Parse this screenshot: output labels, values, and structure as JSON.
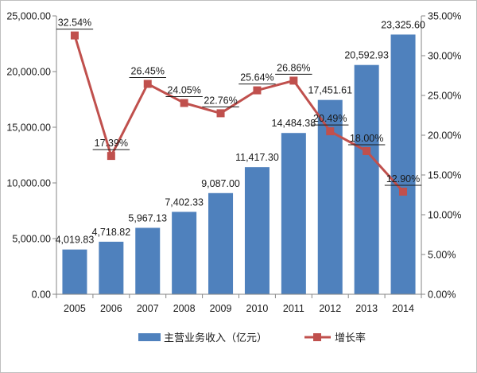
{
  "chart_data": {
    "type": "bar",
    "categories": [
      "2005",
      "2006",
      "2007",
      "2008",
      "2009",
      "2010",
      "2011",
      "2012",
      "2013",
      "2014"
    ],
    "series": [
      {
        "name": "主营业务收入（亿元）",
        "type": "bar",
        "axis": "left",
        "color": "#4f81bd",
        "values": [
          4019.83,
          4718.82,
          5967.13,
          7402.33,
          9087.0,
          11417.3,
          14484.38,
          17451.61,
          20592.93,
          23325.6
        ],
        "labels": [
          "4,019.83",
          "4,718.82",
          "5,967.13",
          "7,402.33",
          "9,087.00",
          "11,417.30",
          "14,484.38",
          "17,451.61",
          "20,592.93",
          "23,325.60"
        ]
      },
      {
        "name": "增长率",
        "type": "line",
        "axis": "right",
        "color": "#c0504d",
        "values": [
          32.54,
          17.39,
          26.45,
          24.05,
          22.76,
          25.64,
          26.86,
          20.49,
          18.0,
          12.9
        ],
        "labels": [
          "32.54%",
          "17.39%",
          "26.45%",
          "24.05%",
          "22.76%",
          "25.64%",
          "26.86%",
          "20.49%",
          "18.00%",
          "12.90%"
        ]
      }
    ],
    "y_left": {
      "range": [
        0,
        25000
      ],
      "ticks": [
        "0.00",
        "5,000.00",
        "10,000.00",
        "15,000.00",
        "20,000.00",
        "25,000.00"
      ]
    },
    "y_right": {
      "range": [
        0,
        35
      ],
      "ticks": [
        "0.00%",
        "5.00%",
        "10.00%",
        "15.00%",
        "20.00%",
        "25.00%",
        "30.00%",
        "35.00%"
      ]
    },
    "grid": false,
    "legend_position": "bottom"
  }
}
